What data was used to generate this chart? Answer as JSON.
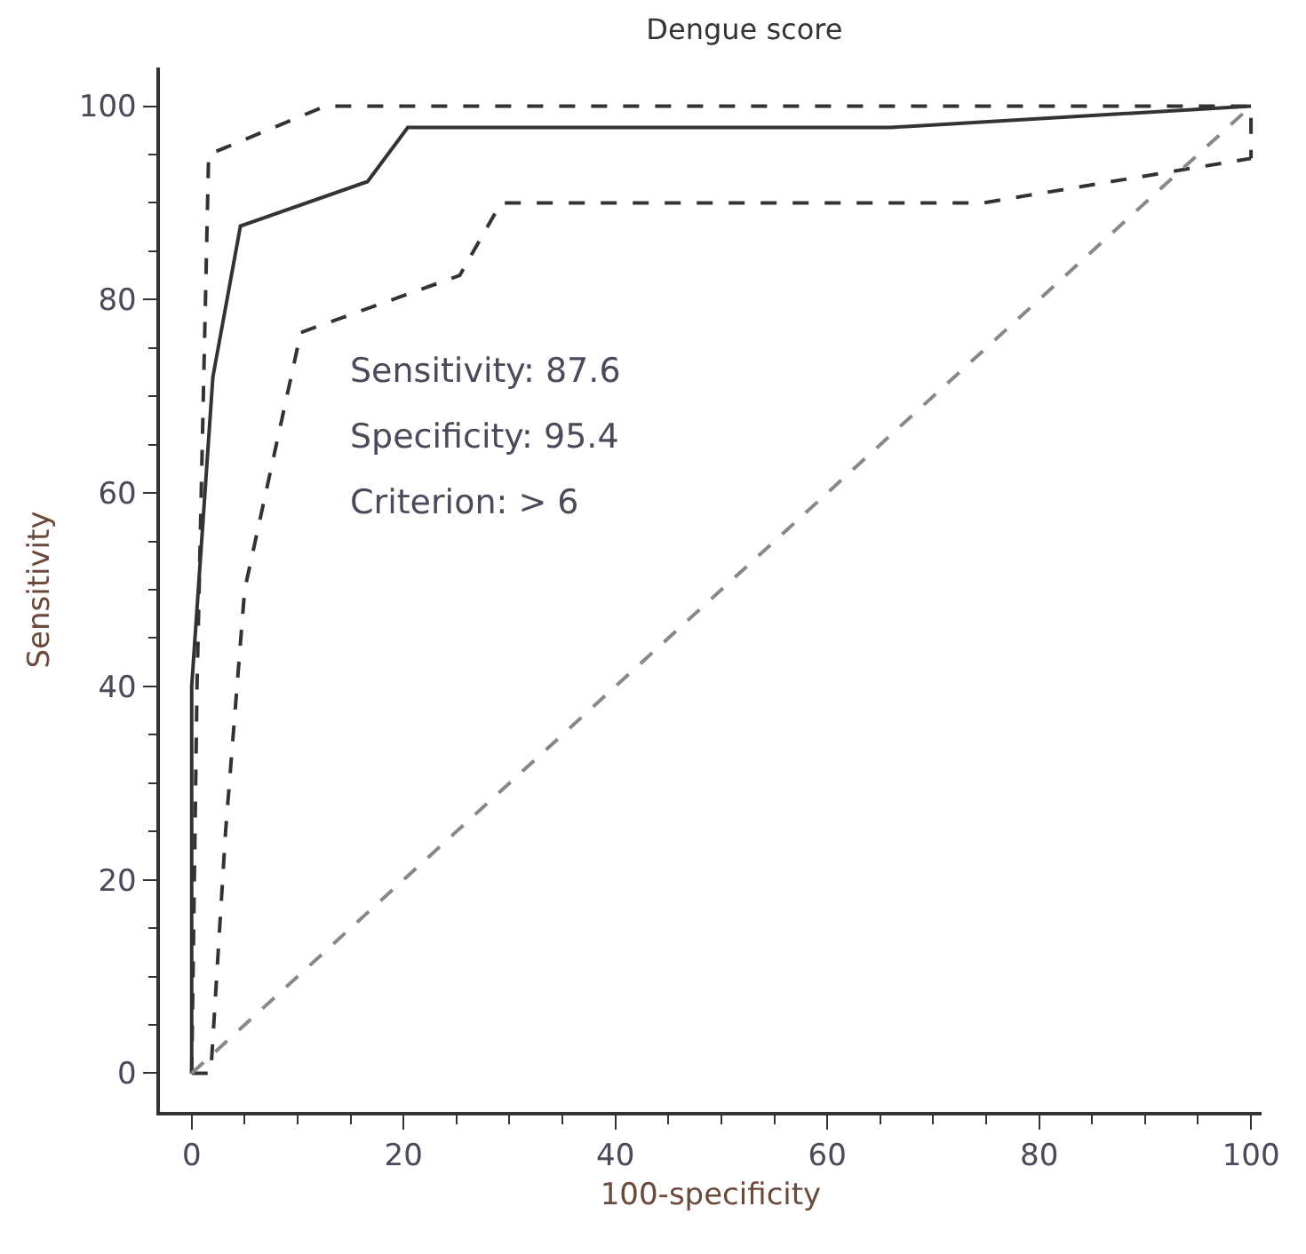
{
  "chart_data": {
    "type": "line",
    "title": "Dengue score",
    "xlabel": "100-specificity",
    "ylabel": "Sensitivity",
    "xlim": [
      -3,
      101
    ],
    "ylim": [
      -4,
      104
    ],
    "xticks": [
      0,
      20,
      40,
      60,
      80,
      100
    ],
    "yticks": [
      0,
      20,
      40,
      60,
      80,
      100
    ],
    "grid": false,
    "marker": "none",
    "annotations": [
      "Sensitivity: 87.6",
      "Specificity: 95.4",
      "Criterion: > 6"
    ],
    "series": [
      {
        "color": "#333333",
        "line_style": "solid",
        "x": [
          0,
          0,
          2,
          4.6,
          16.6,
          20.4,
          66,
          100
        ],
        "values": [
          0,
          40,
          72,
          87.6,
          92.2,
          97.8,
          97.8,
          100
        ]
      },
      {
        "color": "#333333",
        "line_style": "dashed",
        "x": [
          0,
          0.5,
          1.6,
          12.6,
          100,
          100
        ],
        "values": [
          0,
          40,
          95,
          100,
          100,
          94.6
        ]
      },
      {
        "color": "#333333",
        "line_style": "dashed",
        "x": [
          0,
          1.8,
          3.2,
          5,
          10.3,
          25.3,
          29.2,
          74.7,
          100
        ],
        "values": [
          0,
          0,
          25,
          50,
          76.6,
          82.5,
          90,
          90,
          94.6
        ]
      },
      {
        "color": "#888888",
        "line_style": "dashed",
        "x": [
          0,
          100
        ],
        "values": [
          0,
          100
        ]
      }
    ]
  }
}
